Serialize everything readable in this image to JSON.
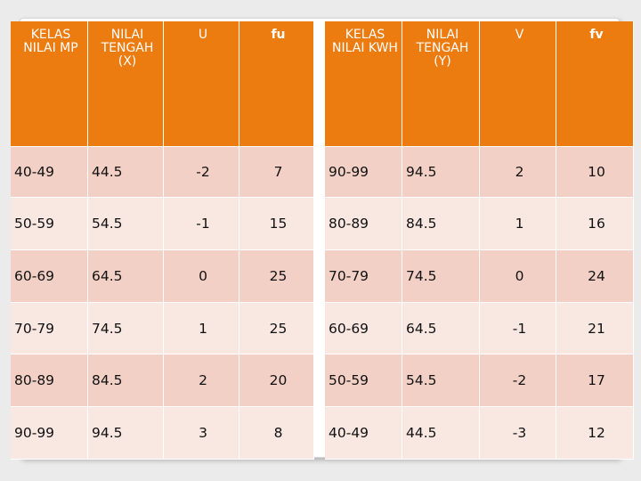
{
  "left_table": {
    "headers": [
      "KELAS NILAI MP",
      "NILAI TENGAH (X)",
      "U",
      "fu"
    ],
    "rows": [
      [
        "40-49",
        "44.5",
        "-2",
        "7"
      ],
      [
        "50-59",
        "54.5",
        "-1",
        "15"
      ],
      [
        "60-69",
        "64.5",
        "0",
        "25"
      ],
      [
        "70-79",
        "74.5",
        "1",
        "25"
      ],
      [
        "80-89",
        "84.5",
        "2",
        "20"
      ],
      [
        "90-99",
        "94.5",
        "3",
        "8"
      ]
    ]
  },
  "right_table": {
    "headers": [
      "KELAS NILAI KWH",
      "NILAI TENGAH (Y)",
      "V",
      "fv"
    ],
    "rows": [
      [
        "90-99",
        "94.5",
        "2",
        "10"
      ],
      [
        "80-89",
        "84.5",
        "1",
        "16"
      ],
      [
        "70-79",
        "74.5",
        "0",
        "24"
      ],
      [
        "60-69",
        "64.5",
        "-1",
        "21"
      ],
      [
        "50-59",
        "54.5",
        "-2",
        "17"
      ],
      [
        "40-49",
        "44.5",
        "-3",
        "12"
      ]
    ]
  },
  "colors": {
    "header_bg": "#ec7b10",
    "row_odd_bg": "#f3d0c5",
    "row_even_bg": "#f9e7e2",
    "slide_bg": "#ebebeb"
  }
}
